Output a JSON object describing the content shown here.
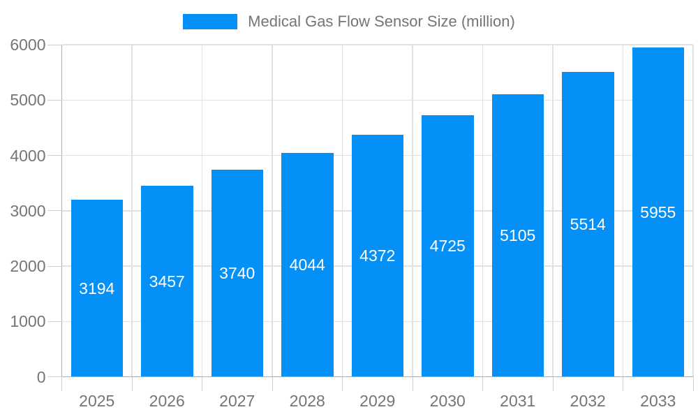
{
  "chart_data": {
    "type": "bar",
    "title": "Medical Gas Flow Sensor Size (million)",
    "legend": {
      "position": "top-center",
      "label": "Medical Gas Flow Sensor Size (million)"
    },
    "categories": [
      "2025",
      "2026",
      "2027",
      "2028",
      "2029",
      "2030",
      "2031",
      "2032",
      "2033"
    ],
    "series": [
      {
        "name": "Medical Gas Flow Sensor Size (million)",
        "values": [
          3194,
          3457,
          3740,
          4044,
          4372,
          4725,
          5105,
          5514,
          5955
        ]
      }
    ],
    "data_labels": {
      "visible": true,
      "placement": "inside-center",
      "color": "#ffffff"
    },
    "xlabel": "",
    "ylabel": "",
    "ylim": [
      0,
      6000
    ],
    "yticks": [
      0,
      1000,
      2000,
      3000,
      4000,
      5000,
      6000
    ],
    "grid": true,
    "colors": {
      "bar": "#0590f7",
      "grid": "#e1e1e1",
      "axis_line": "#adadad",
      "tick_line": "#cfcfcf",
      "axis_text": "#757575",
      "background": "#ffffff"
    }
  }
}
